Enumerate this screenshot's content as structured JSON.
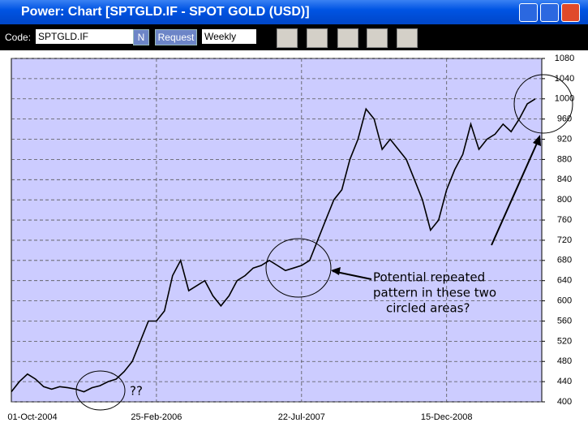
{
  "window": {
    "title": "Power: Chart [SPTGLD.IF - SPOT GOLD (USD)]"
  },
  "toolbar": {
    "code_label": "Code:",
    "code_value": "SPTGLD.IF",
    "n_button": "N",
    "request_button": "Request",
    "period": "Weekly"
  },
  "chart_data": {
    "type": "line",
    "categories": [
      "01-Oct-2004",
      null,
      null,
      null,
      null,
      null,
      null,
      null,
      null,
      null,
      null,
      null,
      null,
      null,
      null,
      null,
      null,
      null,
      "25-Feb-2006",
      null,
      null,
      null,
      null,
      null,
      null,
      null,
      null,
      null,
      null,
      null,
      null,
      null,
      null,
      null,
      null,
      null,
      "22-Jul-2007",
      null,
      null,
      null,
      null,
      null,
      null,
      null,
      null,
      null,
      null,
      null,
      null,
      null,
      null,
      null,
      null,
      null,
      "15-Dec-2008",
      null,
      null,
      null,
      null,
      null,
      null,
      null,
      null,
      null,
      null,
      null
    ],
    "values": [
      420,
      440,
      455,
      445,
      430,
      425,
      430,
      428,
      425,
      420,
      428,
      432,
      440,
      445,
      460,
      480,
      520,
      560,
      560,
      580,
      650,
      680,
      620,
      630,
      640,
      610,
      590,
      610,
      640,
      650,
      665,
      670,
      680,
      670,
      660,
      665,
      670,
      680,
      720,
      760,
      800,
      820,
      880,
      920,
      980,
      960,
      900,
      920,
      900,
      880,
      840,
      800,
      740,
      760,
      820,
      860,
      890,
      950,
      900,
      920,
      930,
      950,
      935,
      960,
      990,
      1000
    ],
    "color": "#000000",
    "ylim": [
      400,
      1080
    ],
    "yticks": [
      400,
      440,
      480,
      520,
      560,
      600,
      640,
      680,
      720,
      760,
      800,
      840,
      880,
      920,
      960,
      1000,
      1040,
      1080
    ],
    "grid": true,
    "annotations": [
      "Potential repeated",
      "pattern in these two",
      "circled areas?",
      "??"
    ]
  }
}
